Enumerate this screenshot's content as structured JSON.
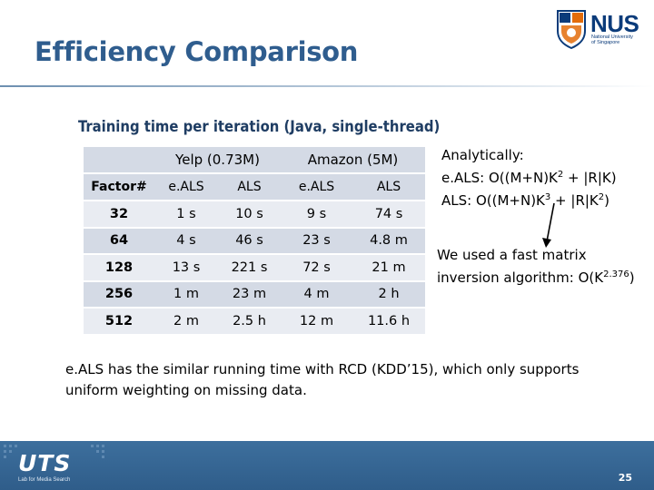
{
  "slide": {
    "title": "Efficiency Comparison",
    "page_number": "25"
  },
  "logo": {
    "letters": "NUS",
    "line1": "National University",
    "line2": "of Singapore"
  },
  "footer_logo": {
    "word": "UTS",
    "tagline": "Lab for Media Search"
  },
  "table": {
    "caption": "Training time per iteration (Java, single-thread)",
    "group_headers": [
      "Yelp (0.73M)",
      "Amazon (5M)"
    ],
    "sub_headers": [
      "Factor#",
      "e.ALS",
      "ALS",
      "e.ALS",
      "ALS"
    ],
    "rows": [
      [
        "32",
        "1 s",
        "10 s",
        "9 s",
        "74 s"
      ],
      [
        "64",
        "4 s",
        "46 s",
        "23 s",
        "4.8 m"
      ],
      [
        "128",
        "13 s",
        "221 s",
        "72 s",
        "21 m"
      ],
      [
        "256",
        "1 m",
        "23 m",
        "4 m",
        "2 h"
      ],
      [
        "512",
        "2 m",
        "2.5 h",
        "12 m",
        "11.6 h"
      ]
    ]
  },
  "analysis": {
    "heading": "Analytically:",
    "eals_label": "e.ALS: O((M+N)K",
    "eals_sup": "2",
    "eals_tail": " + |R|K)",
    "als_label": "ALS: O((M+N)K",
    "als_sup": "3",
    "als_mid": " + |R|K",
    "als_sup2": "2",
    "als_tail": ")"
  },
  "fast_note": {
    "line1": "We used a fast matrix",
    "line2_start": "inversion algorithm: O(K",
    "line2_sup": "2.376",
    "line2_end": ")"
  },
  "bottom_note": "e.ALS has the similar running time with RCD (KDD’15), which only supports uniform weighting on missing data."
}
